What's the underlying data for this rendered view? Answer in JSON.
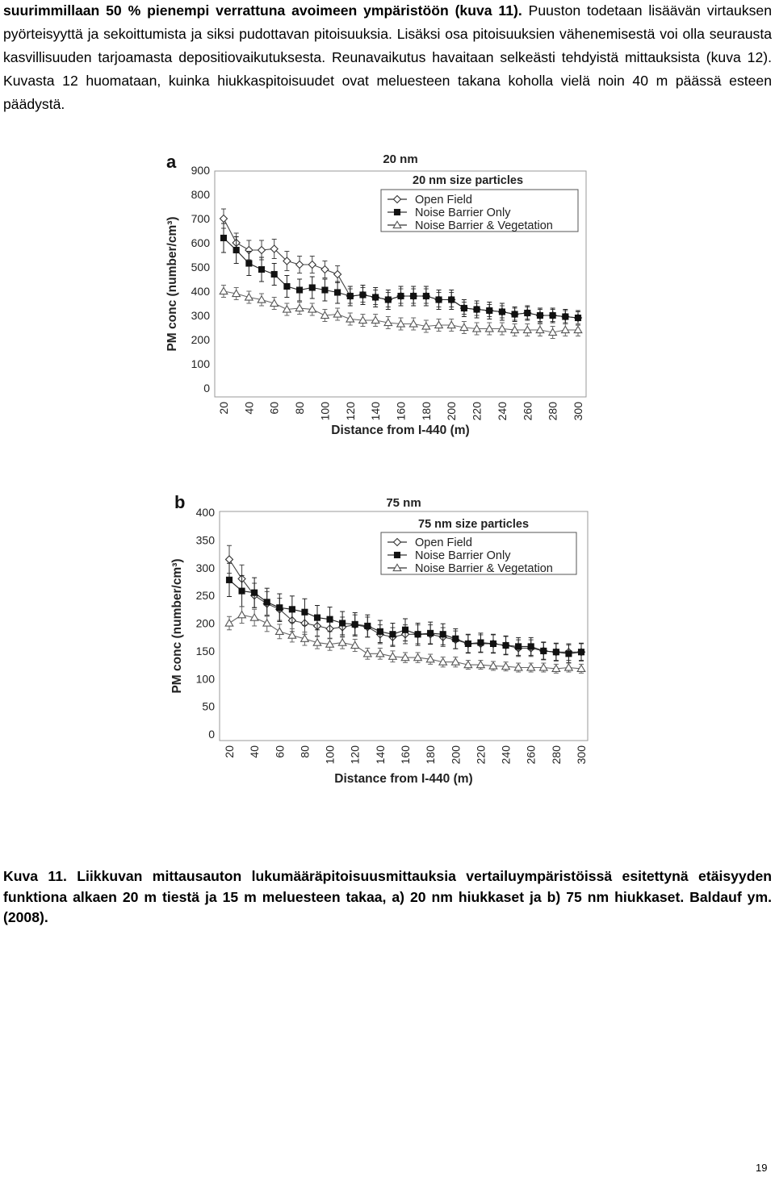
{
  "paragraph": {
    "bold_part": "suurimmillaan 50 % pienempi verrattuna avoimeen ympäristöön (kuva 11).",
    "rest": " Puuston todetaan lisäävän virtauksen pyörteisyyttä ja sekoittumista ja siksi pudottavan pitoisuuksia. Lisäksi osa pitoisuuksien vähenemisestä voi olla seurausta kasvillisuuden tarjoamasta depositiovaikutuksesta. Reunavaikutus havaitaan selkeästi tehdyistä mittauksista (kuva 12). Kuvasta 12 huomataan, kuinka hiukkaspitoisuudet ovat meluesteen takana koholla vielä noin 40 m päässä esteen päädystä."
  },
  "caption": "Kuva 11. Liikkuvan mittausauton lukumääräpitoisuusmittauksia vertailuympäristöissä esitettynä etäisyyden funktiona alkaen 20 m tiestä ja 15 m meluesteen takaa, a) 20 nm hiukkaset ja b) 75 nm hiukkaset. Baldauf ym. (2008).",
  "page_number": "19",
  "chart_data": [
    {
      "type": "line",
      "panel_letter": "a",
      "title": "20 nm",
      "legend_title": "20 nm size particles",
      "xlabel": "Distance from I-440 (m)",
      "ylabel": "PM conc (number/cm³)",
      "ylim": [
        0,
        900
      ],
      "yticks": [
        0,
        100,
        200,
        300,
        400,
        500,
        600,
        700,
        800,
        900
      ],
      "xticks": [
        20,
        40,
        60,
        80,
        100,
        120,
        140,
        160,
        180,
        200,
        220,
        240,
        260,
        280,
        300
      ],
      "x": [
        20,
        30,
        40,
        50,
        60,
        70,
        80,
        90,
        100,
        110,
        120,
        130,
        140,
        150,
        160,
        170,
        180,
        190,
        200,
        210,
        220,
        230,
        240,
        250,
        260,
        270,
        280,
        290,
        300
      ],
      "grid": false,
      "legend_position": "top-right",
      "series": [
        {
          "name": "Open Field",
          "marker": "diamond-open",
          "values": [
            700,
            600,
            570,
            570,
            575,
            525,
            510,
            510,
            490,
            470,
            380,
            385,
            375,
            365,
            380,
            380,
            380,
            365,
            365,
            330,
            325,
            320,
            315,
            305,
            310,
            300,
            300,
            295,
            290
          ],
          "errors": [
            40,
            40,
            40,
            40,
            40,
            40,
            35,
            35,
            35,
            35,
            30,
            30,
            30,
            30,
            30,
            30,
            30,
            30,
            30,
            25,
            25,
            25,
            25,
            25,
            25,
            25,
            25,
            25,
            25
          ]
        },
        {
          "name": "Noise Barrier Only",
          "marker": "square-filled",
          "values": [
            620,
            570,
            515,
            490,
            470,
            420,
            405,
            415,
            405,
            395,
            380,
            385,
            375,
            365,
            380,
            380,
            380,
            365,
            365,
            330,
            325,
            320,
            315,
            305,
            310,
            300,
            300,
            295,
            290
          ],
          "errors": [
            60,
            55,
            50,
            50,
            45,
            45,
            45,
            45,
            45,
            45,
            40,
            40,
            40,
            40,
            40,
            40,
            40,
            40,
            40,
            35,
            35,
            35,
            35,
            30,
            30,
            30,
            30,
            30,
            30
          ]
        },
        {
          "name": "Noise Barrier & Vegetation",
          "marker": "triangle-open",
          "values": [
            400,
            390,
            375,
            365,
            350,
            325,
            330,
            325,
            300,
            305,
            285,
            280,
            280,
            270,
            265,
            265,
            255,
            260,
            260,
            250,
            245,
            245,
            245,
            240,
            240,
            240,
            230,
            240,
            240
          ],
          "errors": [
            25,
            25,
            25,
            25,
            25,
            25,
            25,
            25,
            25,
            25,
            25,
            25,
            25,
            25,
            25,
            25,
            25,
            25,
            25,
            25,
            25,
            25,
            25,
            25,
            25,
            25,
            25,
            25,
            25
          ]
        }
      ]
    },
    {
      "type": "line",
      "panel_letter": "b",
      "title": "75 nm",
      "legend_title": "75 nm size particles",
      "xlabel": "Distance from I-440 (m)",
      "ylabel": "PM conc (number/cm³)",
      "ylim": [
        0,
        400
      ],
      "yticks": [
        0,
        50,
        100,
        150,
        200,
        250,
        300,
        350,
        400
      ],
      "xticks": [
        20,
        40,
        60,
        80,
        100,
        120,
        140,
        160,
        180,
        200,
        220,
        240,
        260,
        280,
        300
      ],
      "x": [
        20,
        30,
        40,
        50,
        60,
        70,
        80,
        90,
        100,
        110,
        120,
        130,
        140,
        150,
        160,
        170,
        180,
        190,
        200,
        210,
        220,
        230,
        240,
        250,
        260,
        270,
        280,
        290,
        300
      ],
      "grid": false,
      "legend_position": "top-right",
      "series": [
        {
          "name": "Open Field",
          "marker": "diamond-open",
          "values": [
            315,
            280,
            250,
            235,
            225,
            205,
            200,
            195,
            190,
            193,
            197,
            193,
            180,
            175,
            180,
            180,
            180,
            175,
            170,
            163,
            163,
            163,
            160,
            155,
            155,
            150,
            148,
            148,
            148
          ],
          "errors": [
            25,
            25,
            22,
            22,
            20,
            20,
            20,
            18,
            18,
            18,
            18,
            18,
            17,
            17,
            17,
            17,
            17,
            17,
            16,
            16,
            16,
            16,
            16,
            15,
            15,
            15,
            15,
            15,
            15
          ]
        },
        {
          "name": "Noise Barrier Only",
          "marker": "square-filled",
          "values": [
            278,
            258,
            255,
            238,
            228,
            225,
            220,
            210,
            207,
            200,
            198,
            195,
            185,
            180,
            188,
            180,
            182,
            180,
            172,
            163,
            165,
            163,
            160,
            158,
            158,
            150,
            148,
            145,
            148
          ],
          "errors": [
            30,
            28,
            27,
            25,
            25,
            24,
            24,
            22,
            22,
            21,
            21,
            20,
            20,
            20,
            20,
            20,
            20,
            19,
            18,
            17,
            17,
            17,
            17,
            16,
            16,
            16,
            16,
            16,
            16
          ]
        },
        {
          "name": "Noise Barrier & Vegetation",
          "marker": "triangle-open",
          "values": [
            200,
            215,
            210,
            200,
            185,
            178,
            172,
            165,
            162,
            165,
            160,
            145,
            145,
            140,
            138,
            138,
            135,
            130,
            130,
            125,
            125,
            123,
            122,
            120,
            120,
            120,
            118,
            120,
            118
          ],
          "errors": [
            12,
            15,
            15,
            15,
            13,
            12,
            12,
            11,
            11,
            11,
            11,
            10,
            10,
            10,
            9,
            9,
            9,
            9,
            9,
            8,
            8,
            8,
            8,
            8,
            8,
            8,
            8,
            8,
            8
          ]
        }
      ]
    }
  ]
}
